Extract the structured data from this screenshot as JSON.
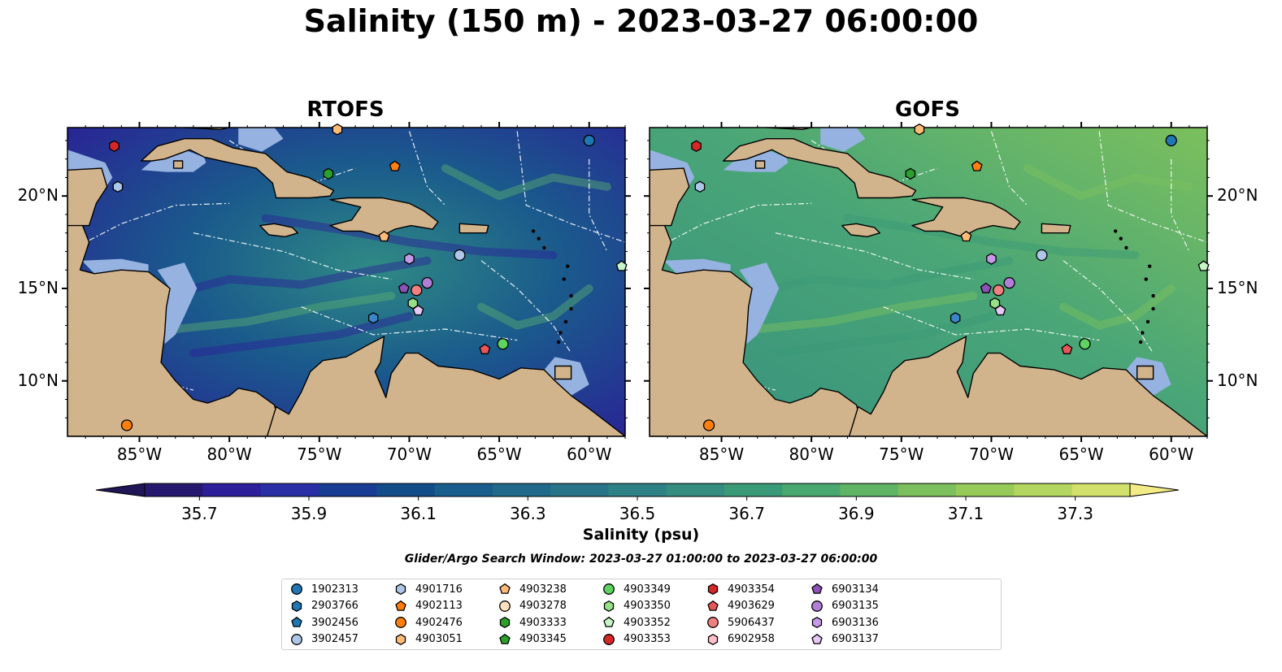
{
  "title": "Salinity (150 m) - 2023-03-27 06:00:00",
  "panels": [
    {
      "id": "rtofs",
      "title": "RTOFS"
    },
    {
      "id": "gofs",
      "title": "GOFS"
    }
  ],
  "map_extent": {
    "lon_min": -89,
    "lon_max": -58,
    "lat_min": 7,
    "lat_max": 23.7
  },
  "lon_ticks": [
    {
      "value": -85,
      "label": "85°W"
    },
    {
      "value": -80,
      "label": "80°W"
    },
    {
      "value": -75,
      "label": "75°W"
    },
    {
      "value": -70,
      "label": "70°W"
    },
    {
      "value": -65,
      "label": "65°W"
    },
    {
      "value": -60,
      "label": "60°W"
    }
  ],
  "lat_ticks": [
    {
      "value": 20,
      "label": "20°N"
    },
    {
      "value": 15,
      "label": "15°N"
    },
    {
      "value": 10,
      "label": "10°N"
    }
  ],
  "colorbar": {
    "label": "Salinity (psu)",
    "min": 35.6,
    "max": 37.4,
    "extend": "both",
    "ticks": [
      "35.7",
      "35.9",
      "36.1",
      "36.3",
      "36.5",
      "36.7",
      "36.9",
      "37.1",
      "37.3"
    ],
    "colors": [
      "#26186e",
      "#2d1f9a",
      "#2a2fa6",
      "#193c94",
      "#124d8a",
      "#185d8c",
      "#20698b",
      "#277488",
      "#2e8185",
      "#348d7f",
      "#3a9a78",
      "#48a86f",
      "#60b465",
      "#7cc05d",
      "#96cb5a",
      "#b3d660",
      "#d2e06c"
    ],
    "under_color": "#1f1557",
    "over_color": "#f3ec86"
  },
  "search_window": "Glider/Argo Search Window: 2023-03-27 01:00:00 to 2023-03-27 06:00:00",
  "colors": {
    "land": "#d2b48c",
    "shelf": "#95b2e0",
    "rtofs_ocean_a": "#1a5a8c",
    "rtofs_ocean_b": "#2a1f96",
    "gofs_ocean_a": "#3f9a7c",
    "gofs_ocean_b": "#5cb06e"
  },
  "legend": [
    {
      "id": "1902313",
      "marker": "circle",
      "color": "#1f77b4",
      "lon": -60.0,
      "lat": 23.0
    },
    {
      "id": "2903766",
      "marker": "hexagon",
      "color": "#1f77b4",
      "lon": null,
      "lat": null
    },
    {
      "id": "3902456",
      "marker": "pentagon",
      "color": "#1f77b4",
      "lon": null,
      "lat": null
    },
    {
      "id": "3902457",
      "marker": "circle",
      "color": "#aec7e8",
      "lon": -67.2,
      "lat": 16.8
    },
    {
      "id": "4901716",
      "marker": "hexagon",
      "color": "#aec7e8",
      "lon": -86.2,
      "lat": 20.5
    },
    {
      "id": "4902113",
      "marker": "pentagon",
      "color": "#ff7f0e",
      "lon": -70.8,
      "lat": 21.6
    },
    {
      "id": "4902476",
      "marker": "circle",
      "color": "#ff7f0e",
      "lon": -85.7,
      "lat": 7.6
    },
    {
      "id": "4903051",
      "marker": "hexagon",
      "color": "#ffbb78",
      "lon": -74.0,
      "lat": 23.6
    },
    {
      "id": "4903238",
      "marker": "pentagon",
      "color": "#ffbb78",
      "lon": -71.4,
      "lat": 17.8
    },
    {
      "id": "4903278",
      "marker": "circle",
      "color": "#ffe0c0",
      "lon": null,
      "lat": null
    },
    {
      "id": "4903333",
      "marker": "hexagon",
      "color": "#2ca02c",
      "lon": -74.5,
      "lat": 21.2
    },
    {
      "id": "4903345",
      "marker": "pentagon",
      "color": "#2ca02c",
      "lon": null,
      "lat": null
    },
    {
      "id": "4903349",
      "marker": "circle",
      "color": "#5fd35f",
      "lon": -64.8,
      "lat": 12.0
    },
    {
      "id": "4903350",
      "marker": "hexagon",
      "color": "#98df8a",
      "lon": -69.8,
      "lat": 14.2
    },
    {
      "id": "4903352",
      "marker": "pentagon",
      "color": "#c8f5c8",
      "lon": -58.2,
      "lat": 16.2
    },
    {
      "id": "4903353",
      "marker": "circle",
      "color": "#d62728",
      "lon": null,
      "lat": null
    },
    {
      "id": "4903354",
      "marker": "hexagon",
      "color": "#d62728",
      "lon": -86.4,
      "lat": 22.7
    },
    {
      "id": "4903629",
      "marker": "pentagon",
      "color": "#e8565a",
      "lon": -65.8,
      "lat": 11.7
    },
    {
      "id": "5906437",
      "marker": "circle",
      "color": "#f08080",
      "lon": -69.6,
      "lat": 14.9
    },
    {
      "id": "6902958",
      "marker": "hexagon",
      "color": "#ffc0cb",
      "lon": null,
      "lat": null
    },
    {
      "id": "6903134",
      "marker": "pentagon",
      "color": "#8c52b8",
      "lon": -70.3,
      "lat": 15.0
    },
    {
      "id": "6903135",
      "marker": "circle",
      "color": "#b07fd6",
      "lon": -69.0,
      "lat": 15.3
    },
    {
      "id": "6903136",
      "marker": "hexagon",
      "color": "#c59be8",
      "lon": -70.0,
      "lat": 16.6
    },
    {
      "id": "6903137",
      "marker": "pentagon",
      "color": "#e5c8f5",
      "lon": -69.5,
      "lat": 13.8
    }
  ],
  "extra_markers": [
    {
      "marker": "hexagon",
      "color": "#3a86c8",
      "lon": -72.0,
      "lat": 13.4
    }
  ]
}
